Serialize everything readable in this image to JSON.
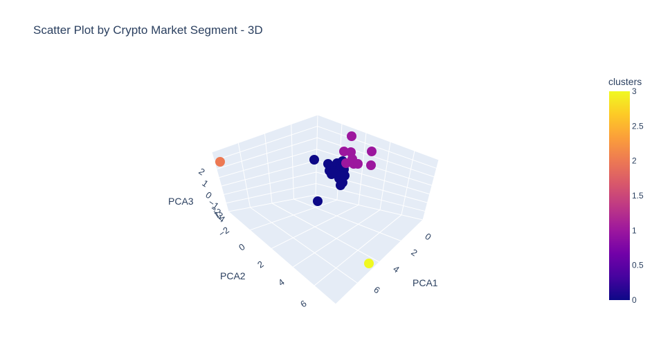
{
  "chart_data": {
    "type": "scatter",
    "subtype": "3d",
    "title": "Scatter Plot by Crypto Market Segment - 3D",
    "axes": {
      "x": {
        "label": "PCA1",
        "ticks": [
          "0",
          "2",
          "4",
          "6"
        ]
      },
      "y": {
        "label": "PCA2",
        "ticks": [
          "−2",
          "0",
          "2",
          "4",
          "6"
        ]
      },
      "z": {
        "label": "PCA3",
        "ticks": [
          "2",
          "1",
          "0",
          "−1",
          "−2",
          "−3",
          "−4"
        ]
      }
    },
    "colorbar": {
      "title": "clusters",
      "range": [
        0,
        3
      ],
      "ticks": [
        "3",
        "2.5",
        "2",
        "1.5",
        "1",
        "0.5",
        "0"
      ],
      "colorscale": [
        "#0d0887",
        "#46039f",
        "#7201a8",
        "#9c179e",
        "#bd3786",
        "#d8576b",
        "#ed7953",
        "#fb9f3a",
        "#fdca26",
        "#f0f921"
      ]
    },
    "points": [
      {
        "cluster": 0,
        "px": [
          454,
          231
        ]
      },
      {
        "cluster": 0,
        "px": [
          474,
          237
        ]
      },
      {
        "cluster": 0,
        "px": [
          476,
          247
        ]
      },
      {
        "cluster": 0,
        "px": [
          479,
          252
        ]
      },
      {
        "cluster": 0,
        "px": [
          484,
          243
        ]
      },
      {
        "cluster": 0,
        "px": [
          487,
          236
        ]
      },
      {
        "cluster": 0,
        "px": [
          489,
          246
        ]
      },
      {
        "cluster": 0,
        "px": [
          491,
          252
        ]
      },
      {
        "cluster": 0,
        "px": [
          493,
          240
        ]
      },
      {
        "cluster": 0,
        "px": [
          495,
          233
        ]
      },
      {
        "cluster": 0,
        "px": [
          497,
          245
        ]
      },
      {
        "cluster": 0,
        "px": [
          490,
          258
        ]
      },
      {
        "cluster": 0,
        "px": [
          495,
          264
        ]
      },
      {
        "cluster": 0,
        "px": [
          492,
          268
        ]
      },
      {
        "cluster": 0,
        "px": [
          498,
          254
        ]
      },
      {
        "cluster": 0,
        "px": [
          482,
          250
        ]
      },
      {
        "cluster": 0,
        "px": [
          459,
          291
        ]
      },
      {
        "cluster": 1,
        "px": [
          508,
          197
        ]
      },
      {
        "cluster": 1,
        "px": [
          497,
          219
        ]
      },
      {
        "cluster": 1,
        "px": [
          507,
          220
        ]
      },
      {
        "cluster": 1,
        "px": [
          537,
          219
        ]
      },
      {
        "cluster": 1,
        "px": [
          500,
          236
        ]
      },
      {
        "cluster": 1,
        "px": [
          509,
          230
        ]
      },
      {
        "cluster": 1,
        "px": [
          511,
          237
        ]
      },
      {
        "cluster": 1,
        "px": [
          517,
          237
        ]
      },
      {
        "cluster": 1,
        "px": [
          536,
          239
        ]
      },
      {
        "cluster": 2,
        "px": [
          318,
          234
        ]
      },
      {
        "cluster": 3,
        "px": [
          533,
          381
        ]
      }
    ]
  }
}
